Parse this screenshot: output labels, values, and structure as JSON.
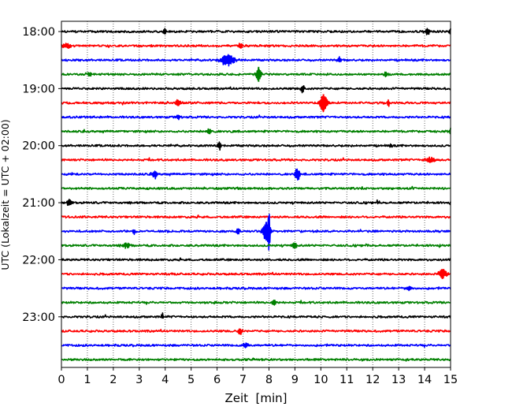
{
  "chart_data": {
    "type": "line",
    "xlabel": "Zeit  [min]",
    "ylabel": "UTC (Lokalzeit = UTC + 02:00)",
    "xlim": [
      0,
      15
    ],
    "x_ticks": [
      "0",
      "1",
      "2",
      "3",
      "4",
      "5",
      "6",
      "7",
      "8",
      "9",
      "10",
      "11",
      "12",
      "13",
      "14",
      "15"
    ],
    "y_tick_labels": [
      "18:00",
      "19:00",
      "20:00",
      "21:00",
      "22:00",
      "23:00"
    ],
    "grid": "vertical dotted at each minute",
    "trace_interval_minutes": 15,
    "start_time_utc": "18:00",
    "trace_count": 24,
    "trace_colors": [
      "#000000",
      "#ff0000",
      "#0000ff",
      "#008000"
    ],
    "events": [
      {
        "trace": 0,
        "minute": 4.0,
        "amp": 0.35,
        "width": 0.06
      },
      {
        "trace": 0,
        "minute": 14.1,
        "amp": 0.35,
        "width": 0.08
      },
      {
        "trace": 0,
        "minute": 15.0,
        "amp": 0.4,
        "width": 0.05
      },
      {
        "trace": 1,
        "minute": 0.2,
        "amp": 0.35,
        "width": 0.1
      },
      {
        "trace": 1,
        "minute": 6.9,
        "amp": 0.35,
        "width": 0.06
      },
      {
        "trace": 2,
        "minute": 6.4,
        "amp": 0.7,
        "width": 0.2
      },
      {
        "trace": 2,
        "minute": 10.7,
        "amp": 0.4,
        "width": 0.05
      },
      {
        "trace": 3,
        "minute": 1.1,
        "amp": 0.35,
        "width": 0.06
      },
      {
        "trace": 3,
        "minute": 7.6,
        "amp": 0.95,
        "width": 0.07
      },
      {
        "trace": 3,
        "minute": 12.5,
        "amp": 0.35,
        "width": 0.05
      },
      {
        "trace": 4,
        "minute": 9.3,
        "amp": 0.55,
        "width": 0.05
      },
      {
        "trace": 5,
        "minute": 4.5,
        "amp": 0.45,
        "width": 0.06
      },
      {
        "trace": 5,
        "minute": 10.1,
        "amp": 1.1,
        "width": 0.1
      },
      {
        "trace": 5,
        "minute": 12.6,
        "amp": 0.4,
        "width": 0.05
      },
      {
        "trace": 6,
        "minute": 4.5,
        "amp": 0.3,
        "width": 0.05
      },
      {
        "trace": 7,
        "minute": 5.7,
        "amp": 0.35,
        "width": 0.06
      },
      {
        "trace": 7,
        "minute": 15.0,
        "amp": 0.45,
        "width": 0.05
      },
      {
        "trace": 8,
        "minute": 6.1,
        "amp": 0.55,
        "width": 0.05
      },
      {
        "trace": 8,
        "minute": 12.7,
        "amp": 0.3,
        "width": 0.05
      },
      {
        "trace": 9,
        "minute": 14.2,
        "amp": 0.3,
        "width": 0.15
      },
      {
        "trace": 10,
        "minute": 3.6,
        "amp": 0.55,
        "width": 0.06
      },
      {
        "trace": 10,
        "minute": 9.1,
        "amp": 0.75,
        "width": 0.08
      },
      {
        "trace": 12,
        "minute": 0.3,
        "amp": 0.5,
        "width": 0.06
      },
      {
        "trace": 12,
        "minute": 12.2,
        "amp": 0.3,
        "width": 0.05
      },
      {
        "trace": 14,
        "minute": 2.8,
        "amp": 0.3,
        "width": 0.06
      },
      {
        "trace": 14,
        "minute": 6.8,
        "amp": 0.4,
        "width": 0.05
      },
      {
        "trace": 14,
        "minute": 7.9,
        "amp": 1.2,
        "width": 0.1
      },
      {
        "trace": 14,
        "minute": 8.0,
        "amp": 2.0,
        "width": 0.03
      },
      {
        "trace": 15,
        "minute": 2.5,
        "amp": 0.35,
        "width": 0.1
      },
      {
        "trace": 15,
        "minute": 9.0,
        "amp": 0.45,
        "width": 0.06
      },
      {
        "trace": 17,
        "minute": 14.7,
        "amp": 0.6,
        "width": 0.12
      },
      {
        "trace": 18,
        "minute": 13.4,
        "amp": 0.35,
        "width": 0.08
      },
      {
        "trace": 19,
        "minute": 8.2,
        "amp": 0.35,
        "width": 0.06
      },
      {
        "trace": 20,
        "minute": 3.9,
        "amp": 0.45,
        "width": 0.04
      },
      {
        "trace": 21,
        "minute": 6.9,
        "amp": 0.45,
        "width": 0.06
      },
      {
        "trace": 22,
        "minute": 7.1,
        "amp": 0.35,
        "width": 0.08
      }
    ]
  }
}
